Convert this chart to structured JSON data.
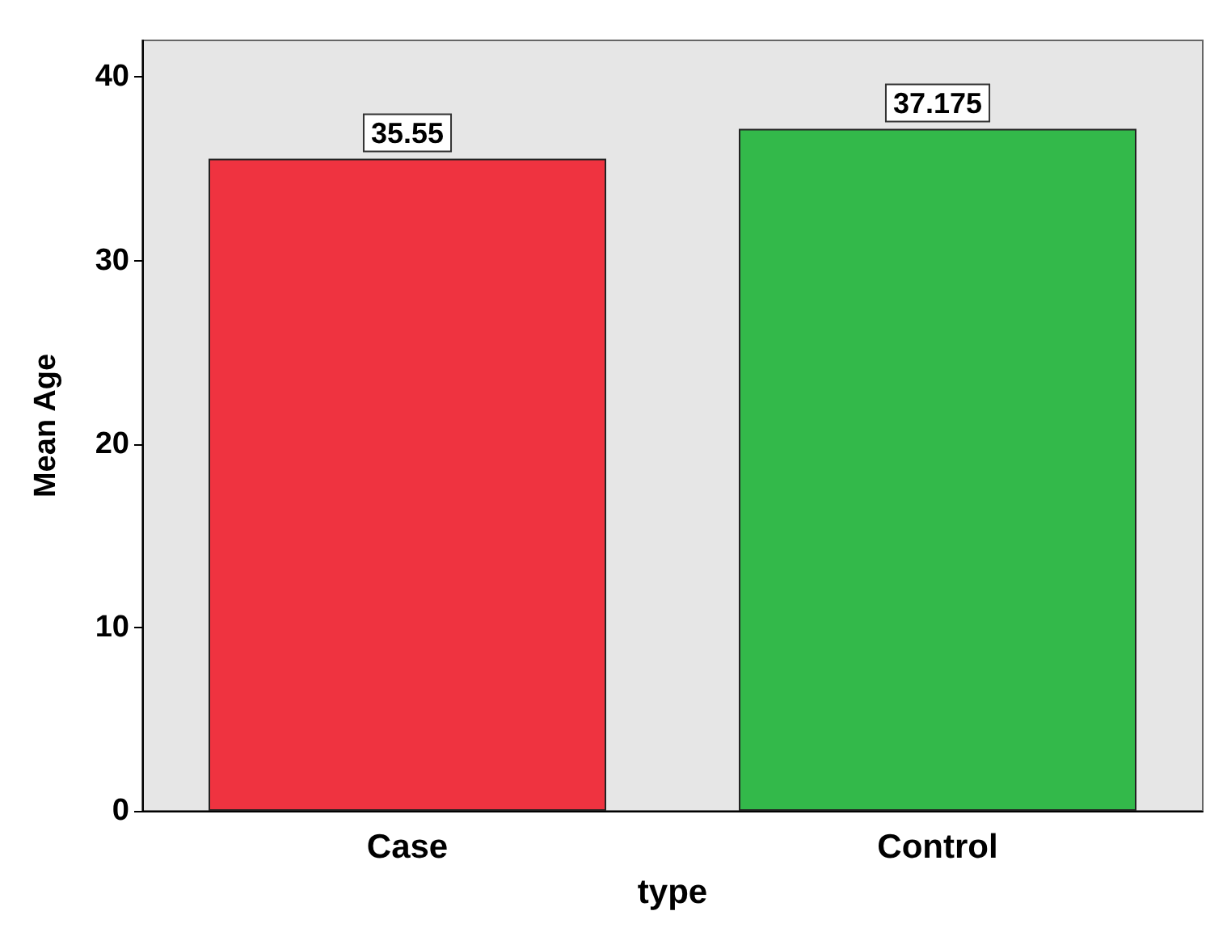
{
  "chart_data": {
    "type": "bar",
    "xlabel": "type",
    "ylabel": "Mean Age",
    "categories": [
      "Case",
      "Control"
    ],
    "values": [
      35.55,
      37.175
    ],
    "colors": [
      "#ef3340",
      "#33b94a"
    ],
    "ylim": [
      0,
      42
    ],
    "yticks": [
      0,
      10,
      20,
      30,
      40
    ],
    "data_labels": true,
    "grid": false
  }
}
